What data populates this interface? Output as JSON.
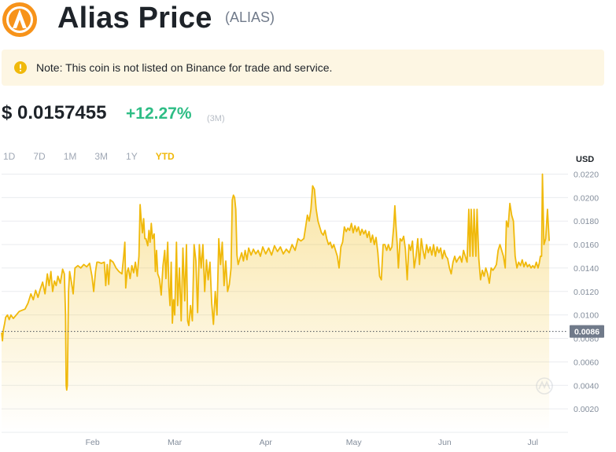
{
  "header": {
    "title": "Alias Price",
    "ticker": "(ALIAS)",
    "logo_icon": "alias-logo-icon",
    "logo_color": "#f7931a"
  },
  "note": {
    "icon": "warning-icon",
    "text": "Note: This coin is not listed on Binance for trade and service."
  },
  "price": {
    "value": "$ 0.0157455",
    "change": "+12.27%",
    "period": "(3M)"
  },
  "ranges": [
    {
      "label": "1D",
      "active": false
    },
    {
      "label": "7D",
      "active": false
    },
    {
      "label": "1M",
      "active": false
    },
    {
      "label": "3M",
      "active": false
    },
    {
      "label": "1Y",
      "active": false
    },
    {
      "label": "YTD",
      "active": true
    }
  ],
  "colors": {
    "accent": "#f0b90b",
    "up": "#2ebd85",
    "grid": "#eaecef",
    "marker_bg": "#707a8a"
  },
  "chart_data": {
    "type": "area",
    "unit": "USD",
    "ylim": [
      0,
      0.0225
    ],
    "yticks": [
      0.002,
      0.004,
      0.006,
      0.008,
      0.01,
      0.012,
      0.014,
      0.016,
      0.018,
      0.02,
      0.022
    ],
    "ytick_labels": [
      "0.0020",
      "0.0040",
      "0.0060",
      "0.0080",
      "0.0100",
      "0.0120",
      "0.0140",
      "0.0160",
      "0.0180",
      "0.0200",
      "0.0220"
    ],
    "xlim_days": [
      0,
      193
    ],
    "xticks": [
      {
        "day": 31,
        "label": "Feb"
      },
      {
        "day": 59,
        "label": "Mar"
      },
      {
        "day": 90,
        "label": "Apr"
      },
      {
        "day": 120,
        "label": "May"
      },
      {
        "day": 151,
        "label": "Jun"
      },
      {
        "day": 181,
        "label": "Jul"
      }
    ],
    "marker": {
      "value": 0.0086,
      "label": "0.0086"
    },
    "grid": true,
    "watermark_icon": "coin-watermark-icon",
    "points": [
      [
        0.0,
        0.0085
      ],
      [
        0.3,
        0.0078
      ],
      [
        0.6,
        0.0087
      ],
      [
        1.0,
        0.0092
      ],
      [
        1.4,
        0.0098
      ],
      [
        2.0,
        0.01
      ],
      [
        2.6,
        0.0096
      ],
      [
        3.2,
        0.01
      ],
      [
        4.0,
        0.0097
      ],
      [
        5.0,
        0.01
      ],
      [
        6.0,
        0.0103
      ],
      [
        7.0,
        0.0104
      ],
      [
        8.0,
        0.0105
      ],
      [
        9.0,
        0.011
      ],
      [
        10.0,
        0.0118
      ],
      [
        10.8,
        0.0113
      ],
      [
        11.6,
        0.0121
      ],
      [
        12.4,
        0.0115
      ],
      [
        13.2,
        0.0122
      ],
      [
        14.0,
        0.0128
      ],
      [
        14.8,
        0.0118
      ],
      [
        15.6,
        0.0135
      ],
      [
        16.2,
        0.0125
      ],
      [
        16.8,
        0.0137
      ],
      [
        17.4,
        0.012
      ],
      [
        18.0,
        0.0129
      ],
      [
        18.6,
        0.0125
      ],
      [
        19.2,
        0.0133
      ],
      [
        20.0,
        0.0127
      ],
      [
        20.8,
        0.0139
      ],
      [
        21.4,
        0.0135
      ],
      [
        21.8,
        0.01
      ],
      [
        22.0,
        0.004
      ],
      [
        22.2,
        0.0036
      ],
      [
        22.4,
        0.004
      ],
      [
        22.8,
        0.012
      ],
      [
        23.2,
        0.0137
      ],
      [
        23.8,
        0.0128
      ],
      [
        24.4,
        0.0118
      ],
      [
        25.0,
        0.014
      ],
      [
        26.0,
        0.0142
      ],
      [
        27.0,
        0.014
      ],
      [
        28.0,
        0.0143
      ],
      [
        29.0,
        0.0141
      ],
      [
        30.0,
        0.0144
      ],
      [
        30.8,
        0.0133
      ],
      [
        31.4,
        0.012
      ],
      [
        32.0,
        0.0137
      ],
      [
        32.5,
        0.0145
      ],
      [
        33.0,
        0.0145
      ],
      [
        34.0,
        0.0144
      ],
      [
        35.0,
        0.0145
      ],
      [
        35.5,
        0.0125
      ],
      [
        36.0,
        0.0143
      ],
      [
        36.5,
        0.0126
      ],
      [
        37.0,
        0.0147
      ],
      [
        38.0,
        0.0145
      ],
      [
        39.0,
        0.014
      ],
      [
        40.0,
        0.0137
      ],
      [
        41.0,
        0.0135
      ],
      [
        41.6,
        0.015
      ],
      [
        42.0,
        0.0162
      ],
      [
        42.3,
        0.0123
      ],
      [
        42.8,
        0.0137
      ],
      [
        43.2,
        0.014
      ],
      [
        43.8,
        0.0131
      ],
      [
        44.4,
        0.0142
      ],
      [
        45.0,
        0.0136
      ],
      [
        45.6,
        0.0145
      ],
      [
        46.2,
        0.0133
      ],
      [
        46.8,
        0.015
      ],
      [
        47.2,
        0.0194
      ],
      [
        47.6,
        0.018
      ],
      [
        48.0,
        0.017
      ],
      [
        48.4,
        0.0182
      ],
      [
        48.8,
        0.0165
      ],
      [
        49.2,
        0.0165
      ],
      [
        49.8,
        0.0159
      ],
      [
        50.2,
        0.0172
      ],
      [
        50.6,
        0.0162
      ],
      [
        51.0,
        0.0178
      ],
      [
        51.4,
        0.0165
      ],
      [
        52.0,
        0.0169
      ],
      [
        52.4,
        0.0137
      ],
      [
        52.8,
        0.0155
      ],
      [
        53.2,
        0.0135
      ],
      [
        53.8,
        0.0131
      ],
      [
        54.4,
        0.0117
      ],
      [
        55.0,
        0.0142
      ],
      [
        55.6,
        0.0155
      ],
      [
        56.0,
        0.0131
      ],
      [
        56.6,
        0.0162
      ],
      [
        57.0,
        0.0124
      ],
      [
        57.4,
        0.0108
      ],
      [
        57.8,
        0.0145
      ],
      [
        58.2,
        0.0093
      ],
      [
        58.6,
        0.0113
      ],
      [
        59.0,
        0.01
      ],
      [
        59.6,
        0.0162
      ],
      [
        60.0,
        0.0108
      ],
      [
        60.6,
        0.014
      ],
      [
        61.2,
        0.0095
      ],
      [
        61.8,
        0.0157
      ],
      [
        62.4,
        0.0112
      ],
      [
        63.0,
        0.016
      ],
      [
        63.4,
        0.0095
      ],
      [
        63.8,
        0.0091
      ],
      [
        64.4,
        0.0108
      ],
      [
        65.0,
        0.0095
      ],
      [
        65.6,
        0.016
      ],
      [
        66.2,
        0.0146
      ],
      [
        66.8,
        0.0102
      ],
      [
        67.4,
        0.016
      ],
      [
        68.0,
        0.014
      ],
      [
        68.6,
        0.016
      ],
      [
        69.2,
        0.012
      ],
      [
        69.8,
        0.0147
      ],
      [
        70.4,
        0.013
      ],
      [
        71.0,
        0.0145
      ],
      [
        71.6,
        0.011
      ],
      [
        72.2,
        0.0092
      ],
      [
        72.8,
        0.012
      ],
      [
        73.4,
        0.01
      ],
      [
        74.0,
        0.0165
      ],
      [
        74.6,
        0.0143
      ],
      [
        75.2,
        0.0162
      ],
      [
        75.8,
        0.0125
      ],
      [
        76.4,
        0.0146
      ],
      [
        77.0,
        0.012
      ],
      [
        77.6,
        0.0126
      ],
      [
        78.2,
        0.014
      ],
      [
        78.6,
        0.0198
      ],
      [
        79.0,
        0.0202
      ],
      [
        79.4,
        0.02
      ],
      [
        79.8,
        0.019
      ],
      [
        80.2,
        0.0151
      ],
      [
        80.6,
        0.0143
      ],
      [
        81.2,
        0.0148
      ],
      [
        81.8,
        0.0153
      ],
      [
        82.4,
        0.0146
      ],
      [
        83.0,
        0.0155
      ],
      [
        83.6,
        0.0147
      ],
      [
        84.2,
        0.0157
      ],
      [
        85.0,
        0.0151
      ],
      [
        85.8,
        0.0156
      ],
      [
        86.6,
        0.0152
      ],
      [
        87.4,
        0.0155
      ],
      [
        88.2,
        0.015
      ],
      [
        89.0,
        0.0158
      ],
      [
        90.0,
        0.0152
      ],
      [
        91.0,
        0.0157
      ],
      [
        92.0,
        0.0151
      ],
      [
        93.0,
        0.0159
      ],
      [
        94.0,
        0.0154
      ],
      [
        95.0,
        0.0158
      ],
      [
        96.0,
        0.0152
      ],
      [
        97.0,
        0.0156
      ],
      [
        98.0,
        0.0153
      ],
      [
        99.0,
        0.016
      ],
      [
        100.0,
        0.0155
      ],
      [
        101.0,
        0.0165
      ],
      [
        102.0,
        0.0163
      ],
      [
        103.0,
        0.0165
      ],
      [
        103.6,
        0.0175
      ],
      [
        104.2,
        0.0185
      ],
      [
        104.8,
        0.018
      ],
      [
        105.4,
        0.019
      ],
      [
        106.0,
        0.021
      ],
      [
        106.6,
        0.0207
      ],
      [
        107.2,
        0.019
      ],
      [
        107.8,
        0.018
      ],
      [
        108.4,
        0.0175
      ],
      [
        109.0,
        0.017
      ],
      [
        109.6,
        0.0168
      ],
      [
        110.2,
        0.0172
      ],
      [
        110.8,
        0.0165
      ],
      [
        111.4,
        0.016
      ],
      [
        112.0,
        0.0162
      ],
      [
        112.6,
        0.0157
      ],
      [
        113.2,
        0.016
      ],
      [
        113.8,
        0.0155
      ],
      [
        114.4,
        0.015
      ],
      [
        115.0,
        0.014
      ],
      [
        115.6,
        0.0158
      ],
      [
        116.2,
        0.0162
      ],
      [
        116.8,
        0.0175
      ],
      [
        117.4,
        0.0171
      ],
      [
        118.0,
        0.0174
      ],
      [
        118.6,
        0.0172
      ],
      [
        119.2,
        0.0178
      ],
      [
        119.8,
        0.017
      ],
      [
        120.4,
        0.0176
      ],
      [
        121.0,
        0.0171
      ],
      [
        121.6,
        0.0175
      ],
      [
        122.2,
        0.0168
      ],
      [
        122.8,
        0.0173
      ],
      [
        123.4,
        0.0169
      ],
      [
        124.0,
        0.0172
      ],
      [
        124.6,
        0.0166
      ],
      [
        125.2,
        0.0171
      ],
      [
        125.8,
        0.0162
      ],
      [
        126.4,
        0.0168
      ],
      [
        127.0,
        0.016
      ],
      [
        127.6,
        0.0166
      ],
      [
        128.2,
        0.0153
      ],
      [
        128.8,
        0.0133
      ],
      [
        129.4,
        0.013
      ],
      [
        130.0,
        0.016
      ],
      [
        130.6,
        0.016
      ],
      [
        131.2,
        0.0155
      ],
      [
        131.8,
        0.016
      ],
      [
        132.4,
        0.0155
      ],
      [
        133.0,
        0.0158
      ],
      [
        133.6,
        0.0175
      ],
      [
        134.0,
        0.0193
      ],
      [
        134.4,
        0.0175
      ],
      [
        134.8,
        0.016
      ],
      [
        135.2,
        0.014
      ],
      [
        135.8,
        0.0165
      ],
      [
        136.4,
        0.0163
      ],
      [
        137.0,
        0.0167
      ],
      [
        137.6,
        0.0156
      ],
      [
        138.2,
        0.013
      ],
      [
        138.8,
        0.016
      ],
      [
        139.4,
        0.0155
      ],
      [
        140.0,
        0.0163
      ],
      [
        140.6,
        0.014
      ],
      [
        141.2,
        0.015
      ],
      [
        141.8,
        0.0165
      ],
      [
        142.4,
        0.0143
      ],
      [
        143.0,
        0.0165
      ],
      [
        143.6,
        0.0155
      ],
      [
        144.2,
        0.0148
      ],
      [
        144.8,
        0.016
      ],
      [
        145.4,
        0.0153
      ],
      [
        146.0,
        0.0158
      ],
      [
        146.6,
        0.0151
      ],
      [
        147.2,
        0.016
      ],
      [
        147.8,
        0.015
      ],
      [
        148.4,
        0.0158
      ],
      [
        149.0,
        0.0153
      ],
      [
        149.6,
        0.0157
      ],
      [
        150.2,
        0.0148
      ],
      [
        150.8,
        0.0155
      ],
      [
        151.4,
        0.015
      ],
      [
        152.0,
        0.0148
      ],
      [
        152.6,
        0.014
      ],
      [
        153.2,
        0.0135
      ],
      [
        153.8,
        0.0145
      ],
      [
        154.4,
        0.015
      ],
      [
        155.0,
        0.0145
      ],
      [
        155.6,
        0.0148
      ],
      [
        156.2,
        0.015
      ],
      [
        156.8,
        0.0145
      ],
      [
        157.4,
        0.0155
      ],
      [
        158.0,
        0.015
      ],
      [
        158.6,
        0.0145
      ],
      [
        159.2,
        0.019
      ],
      [
        159.6,
        0.015
      ],
      [
        160.0,
        0.019
      ],
      [
        160.6,
        0.015
      ],
      [
        161.0,
        0.019
      ],
      [
        161.6,
        0.015
      ],
      [
        162.0,
        0.019
      ],
      [
        162.6,
        0.0148
      ],
      [
        163.2,
        0.013
      ],
      [
        163.8,
        0.0138
      ],
      [
        164.4,
        0.0133
      ],
      [
        165.0,
        0.014
      ],
      [
        165.6,
        0.0135
      ],
      [
        166.2,
        0.0127
      ],
      [
        166.8,
        0.014
      ],
      [
        167.4,
        0.0138
      ],
      [
        168.0,
        0.014
      ],
      [
        168.6,
        0.0143
      ],
      [
        169.2,
        0.0155
      ],
      [
        169.8,
        0.016
      ],
      [
        170.4,
        0.0155
      ],
      [
        171.0,
        0.015
      ],
      [
        171.6,
        0.014
      ],
      [
        172.0,
        0.018
      ],
      [
        172.6,
        0.0175
      ],
      [
        173.2,
        0.0195
      ],
      [
        173.8,
        0.0185
      ],
      [
        174.4,
        0.018
      ],
      [
        175.0,
        0.015
      ],
      [
        175.6,
        0.014
      ],
      [
        176.2,
        0.0145
      ],
      [
        176.8,
        0.0142
      ],
      [
        177.4,
        0.0147
      ],
      [
        178.0,
        0.0141
      ],
      [
        178.6,
        0.0145
      ],
      [
        179.2,
        0.0141
      ],
      [
        179.8,
        0.0143
      ],
      [
        180.4,
        0.014
      ],
      [
        181.0,
        0.0142
      ],
      [
        181.6,
        0.014
      ],
      [
        182.2,
        0.0145
      ],
      [
        182.8,
        0.014
      ],
      [
        183.2,
        0.0144
      ],
      [
        183.6,
        0.015
      ],
      [
        184.0,
        0.015
      ],
      [
        184.3,
        0.022
      ],
      [
        184.8,
        0.016
      ],
      [
        185.4,
        0.0165
      ],
      [
        186.0,
        0.019
      ],
      [
        186.6,
        0.0163
      ]
    ]
  }
}
